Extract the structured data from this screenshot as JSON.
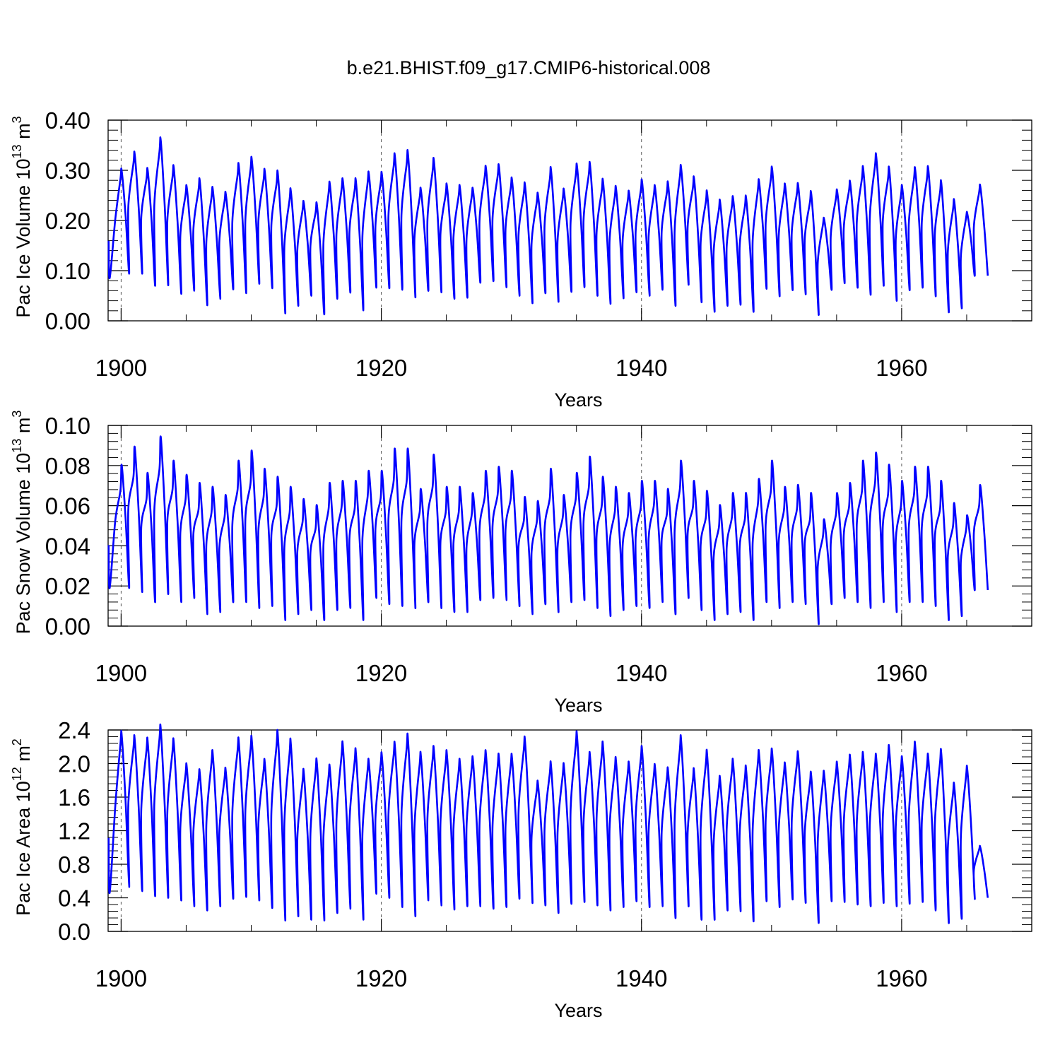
{
  "title": "b.e21.BHIST.f09_g17.CMIP6-historical.008",
  "colors": {
    "line": "#0000ff",
    "axis": "#000000",
    "grid": "#555555",
    "background": "#ffffff"
  },
  "chart_data": [
    {
      "type": "line",
      "name": "pac-ice-volume",
      "ylabel": {
        "pre": "Pac Ice Volume 10",
        "sup": "13",
        "post": " m",
        "sup2": "3"
      },
      "xlabel": "Years",
      "xlim": [
        1899,
        1970
      ],
      "ylim": [
        0,
        0.4
      ],
      "yticks": [
        0,
        0.1,
        0.2,
        0.3,
        0.4
      ],
      "ytick_labels": [
        "0.00",
        "0.10",
        "0.20",
        "0.30",
        "0.40"
      ],
      "xticks": [
        1900,
        1920,
        1940,
        1960
      ],
      "xtick_labels": [
        "1900",
        "1920",
        "1940",
        "1960"
      ],
      "grid": "dashed vertical at major x ticks",
      "series": {
        "name": "Pac Ice Volume",
        "start": 1899.04,
        "end": 1969.96,
        "summer_dip": 0.07,
        "peaks": [
          0.298,
          0.331,
          0.299,
          0.358,
          0.304,
          0.265,
          0.278,
          0.261,
          0.252,
          0.308,
          0.32,
          0.297,
          0.293,
          0.258,
          0.234,
          0.231,
          0.271,
          0.278,
          0.278,
          0.291,
          0.291,
          0.327,
          0.333,
          0.26,
          0.318,
          0.268,
          0.265,
          0.26,
          0.303,
          0.306,
          0.28,
          0.27,
          0.25,
          0.3,
          0.258,
          0.307,
          0.31,
          0.277,
          0.263,
          0.254,
          0.276,
          0.265,
          0.272,
          0.304,
          0.282,
          0.254,
          0.236,
          0.243,
          0.244,
          0.276,
          0.301,
          0.268,
          0.269,
          0.253,
          0.201,
          0.257,
          0.274,
          0.302,
          0.327,
          0.301,
          0.265,
          0.3,
          0.302,
          0.274,
          0.237,
          0.213,
          0.267
        ],
        "troughs": [
          0.085,
          0.094,
          0.094,
          0.07,
          0.071,
          0.054,
          0.06,
          0.031,
          0.044,
          0.063,
          0.055,
          0.074,
          0.065,
          0.015,
          0.03,
          0.05,
          0.013,
          0.044,
          0.056,
          0.021,
          0.066,
          0.065,
          0.062,
          0.047,
          0.06,
          0.057,
          0.044,
          0.046,
          0.076,
          0.079,
          0.067,
          0.05,
          0.035,
          0.055,
          0.038,
          0.058,
          0.067,
          0.05,
          0.034,
          0.045,
          0.057,
          0.05,
          0.062,
          0.03,
          0.072,
          0.037,
          0.018,
          0.03,
          0.032,
          0.018,
          0.064,
          0.049,
          0.061,
          0.053,
          0.012,
          0.062,
          0.075,
          0.066,
          0.052,
          0.07,
          0.04,
          0.061,
          0.066,
          0.049,
          0.017,
          0.025,
          0.09
        ]
      }
    },
    {
      "type": "line",
      "name": "pac-snow-volume",
      "ylabel": {
        "pre": "Pac Snow Volume 10",
        "sup": "13",
        "post": " m",
        "sup2": "3"
      },
      "xlabel": "Years",
      "xlim": [
        1899,
        1970
      ],
      "ylim": [
        0,
        0.1
      ],
      "yticks": [
        0,
        0.02,
        0.04,
        0.06,
        0.08,
        0.1
      ],
      "ytick_labels": [
        "0.00",
        "0.02",
        "0.04",
        "0.06",
        "0.08",
        "0.10"
      ],
      "xticks": [
        1900,
        1920,
        1940,
        1960
      ],
      "xtick_labels": [
        "1900",
        "1920",
        "1940",
        "1960"
      ],
      "grid": "dashed vertical at major x ticks",
      "series": {
        "name": "Pac Snow Volume",
        "start": 1899.04,
        "end": 1969.96,
        "summer_dip": 0.2,
        "peaks": [
          0.08,
          0.089,
          0.076,
          0.094,
          0.082,
          0.075,
          0.071,
          0.069,
          0.065,
          0.082,
          0.087,
          0.078,
          0.074,
          0.069,
          0.063,
          0.06,
          0.071,
          0.072,
          0.072,
          0.077,
          0.077,
          0.088,
          0.088,
          0.068,
          0.085,
          0.069,
          0.069,
          0.066,
          0.077,
          0.079,
          0.077,
          0.064,
          0.062,
          0.078,
          0.065,
          0.076,
          0.084,
          0.074,
          0.069,
          0.066,
          0.072,
          0.072,
          0.068,
          0.082,
          0.072,
          0.067,
          0.06,
          0.066,
          0.066,
          0.073,
          0.082,
          0.069,
          0.07,
          0.066,
          0.053,
          0.066,
          0.071,
          0.082,
          0.086,
          0.08,
          0.072,
          0.079,
          0.079,
          0.072,
          0.061,
          0.055,
          0.07
        ],
        "troughs": [
          0.019,
          0.019,
          0.017,
          0.012,
          0.016,
          0.012,
          0.014,
          0.006,
          0.007,
          0.012,
          0.012,
          0.009,
          0.01,
          0.003,
          0.006,
          0.008,
          0.003,
          0.008,
          0.009,
          0.003,
          0.014,
          0.011,
          0.01,
          0.009,
          0.012,
          0.009,
          0.007,
          0.007,
          0.013,
          0.014,
          0.013,
          0.01,
          0.006,
          0.011,
          0.007,
          0.012,
          0.013,
          0.009,
          0.005,
          0.008,
          0.01,
          0.009,
          0.012,
          0.006,
          0.014,
          0.008,
          0.003,
          0.006,
          0.007,
          0.003,
          0.012,
          0.009,
          0.012,
          0.011,
          0.001,
          0.011,
          0.014,
          0.012,
          0.009,
          0.012,
          0.007,
          0.012,
          0.012,
          0.01,
          0.003,
          0.005,
          0.018
        ]
      }
    },
    {
      "type": "line",
      "name": "pac-ice-area",
      "ylabel": {
        "pre": "Pac Ice Area 10",
        "sup": "12",
        "post": " m",
        "sup2": "2"
      },
      "xlabel": "Years",
      "xlim": [
        1899,
        1970
      ],
      "ylim": [
        0,
        2.4
      ],
      "yticks": [
        0,
        0.4,
        0.8,
        1.2,
        1.6,
        2.0,
        2.4
      ],
      "ytick_labels": [
        "0.0",
        "0.4",
        "0.8",
        "1.2",
        "1.6",
        "2.0",
        "2.4"
      ],
      "xticks": [
        1900,
        1920,
        1940,
        1960
      ],
      "xtick_labels": [
        "1900",
        "1920",
        "1940",
        "1960"
      ],
      "grid": "dashed vertical at major x ticks",
      "series": {
        "name": "Pac Ice Area",
        "start": 1899.04,
        "end": 1969.96,
        "summer_dip": 0.05,
        "peaks": [
          2.33,
          2.28,
          2.25,
          2.4,
          2.24,
          1.95,
          1.88,
          2.1,
          1.9,
          2.25,
          2.27,
          2.0,
          2.33,
          2.23,
          1.88,
          2.0,
          1.93,
          2.2,
          2.12,
          2.0,
          2.08,
          2.2,
          2.29,
          2.08,
          2.15,
          2.1,
          2.0,
          2.03,
          2.1,
          2.06,
          2.06,
          2.26,
          1.75,
          1.97,
          1.95,
          2.32,
          2.08,
          2.2,
          2.02,
          1.97,
          2.15,
          1.94,
          1.9,
          2.27,
          1.89,
          2.1,
          1.8,
          2.0,
          1.92,
          2.1,
          2.12,
          1.96,
          2.09,
          1.85,
          1.86,
          1.97,
          2.05,
          2.08,
          2.06,
          2.16,
          2.03,
          2.2,
          2.06,
          2.11,
          1.72,
          1.92,
          1.0
        ],
        "troughs": [
          0.46,
          0.53,
          0.48,
          0.42,
          0.4,
          0.37,
          0.3,
          0.25,
          0.3,
          0.39,
          0.41,
          0.37,
          0.28,
          0.13,
          0.18,
          0.14,
          0.13,
          0.22,
          0.27,
          0.14,
          0.45,
          0.4,
          0.29,
          0.18,
          0.37,
          0.31,
          0.26,
          0.3,
          0.3,
          0.27,
          0.29,
          0.39,
          0.34,
          0.31,
          0.22,
          0.33,
          0.35,
          0.31,
          0.25,
          0.29,
          0.36,
          0.29,
          0.3,
          0.16,
          0.3,
          0.14,
          0.14,
          0.25,
          0.24,
          0.12,
          0.36,
          0.29,
          0.38,
          0.34,
          0.1,
          0.36,
          0.35,
          0.32,
          0.3,
          0.34,
          0.3,
          0.33,
          0.35,
          0.25,
          0.1,
          0.15,
          0.4
        ]
      }
    }
  ]
}
